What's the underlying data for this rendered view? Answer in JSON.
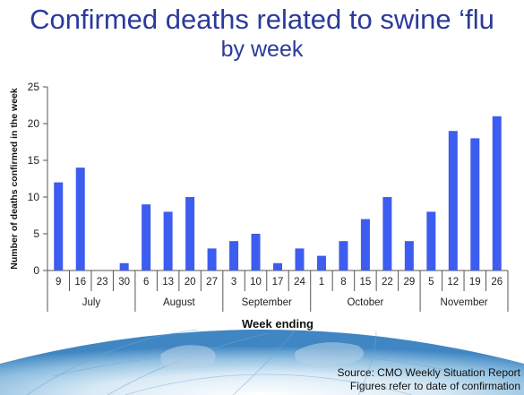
{
  "title_line1": "Confirmed deaths related to swine ‘flu",
  "title_line2": "by week",
  "source_line1": "Source: CMO Weekly Situation Report",
  "source_line2": "Figures refer to date of confirmation",
  "colors": {
    "title": "#2b3a9b",
    "bar": "#3d5cf0",
    "axis": "#555555"
  },
  "chart_data": {
    "type": "bar",
    "xlabel": "Week ending",
    "ylabel": "Number of deaths confirmed in the week",
    "ylim": [
      0,
      25
    ],
    "yticks": [
      0,
      5,
      10,
      15,
      20,
      25
    ],
    "grid": false,
    "categories": [
      "9",
      "16",
      "23",
      "30",
      "6",
      "13",
      "20",
      "27",
      "3",
      "10",
      "17",
      "24",
      "1",
      "8",
      "15",
      "22",
      "29",
      "5",
      "12",
      "19",
      "26"
    ],
    "values": [
      12,
      14,
      0,
      1,
      9,
      8,
      10,
      3,
      4,
      5,
      1,
      3,
      2,
      4,
      7,
      10,
      4,
      8,
      19,
      18,
      21
    ],
    "month_groups": [
      {
        "label": "July",
        "count": 4
      },
      {
        "label": "August",
        "count": 4
      },
      {
        "label": "September",
        "count": 4
      },
      {
        "label": "October",
        "count": 5
      },
      {
        "label": "November",
        "count": 4
      }
    ]
  }
}
